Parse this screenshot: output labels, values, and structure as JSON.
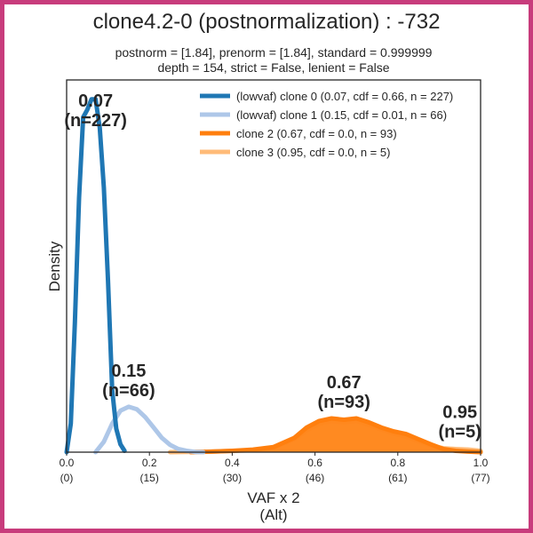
{
  "chart_data": {
    "type": "area",
    "title": "clone4.2-0 (postnormalization) : -732",
    "subtitle_lines": [
      "postnorm = [1.84], prenorm = [1.84], standard = 0.999999",
      "depth = 154, strict = False, lenient = False"
    ],
    "xlabel_lines": [
      "VAF x 2",
      "(Alt)"
    ],
    "ylabel": "Density",
    "xlim": [
      0.0,
      1.0
    ],
    "ylim": [
      0,
      14
    ],
    "x_ticks": [
      {
        "value": 0.0,
        "label": "0.0",
        "sublabel": "(0)"
      },
      {
        "value": 0.2,
        "label": "0.2",
        "sublabel": "(15)"
      },
      {
        "value": 0.4,
        "label": "0.4",
        "sublabel": "(30)"
      },
      {
        "value": 0.6,
        "label": "0.6",
        "sublabel": "(46)"
      },
      {
        "value": 0.8,
        "label": "0.8",
        "sublabel": "(61)"
      },
      {
        "value": 1.0,
        "label": "1.0",
        "sublabel": "(77)"
      }
    ],
    "grid": false,
    "legend_position": "top-right",
    "series": [
      {
        "name": "(lowvaf) clone 0 (0.07, cdf = 0.66, n = 227)",
        "color": "#1f77b4",
        "filled": false,
        "peak_label": [
          "0.07",
          "(n=227)"
        ],
        "peak_x": 0.07,
        "x": [
          0.0,
          0.01,
          0.02,
          0.03,
          0.04,
          0.05,
          0.06,
          0.07,
          0.08,
          0.09,
          0.1,
          0.11,
          0.12,
          0.13,
          0.14
        ],
        "y": [
          0.0,
          1.1,
          5.0,
          9.8,
          12.9,
          13.2,
          13.6,
          13.6,
          12.5,
          10.2,
          6.6,
          2.4,
          0.9,
          0.3,
          0.05
        ]
      },
      {
        "name": "(lowvaf) clone 1 (0.15, cdf = 0.01, n = 66)",
        "color": "#aec7e8",
        "filled": false,
        "peak_label": [
          "0.15",
          "(n=66)"
        ],
        "peak_x": 0.15,
        "x": [
          0.07,
          0.09,
          0.11,
          0.13,
          0.15,
          0.17,
          0.19,
          0.21,
          0.23,
          0.25,
          0.27,
          0.29,
          0.31,
          0.33
        ],
        "y": [
          0.0,
          0.4,
          1.1,
          1.6,
          1.75,
          1.65,
          1.35,
          0.95,
          0.55,
          0.28,
          0.12,
          0.05,
          0.01,
          0.0
        ]
      },
      {
        "name": "clone 2 (0.67, cdf = 0.0, n = 93)",
        "color": "#ff7f0e",
        "filled": true,
        "peak_label": [
          "0.67",
          "(n=93)"
        ],
        "peak_x": 0.67,
        "x": [
          0.3,
          0.35,
          0.4,
          0.45,
          0.5,
          0.55,
          0.58,
          0.61,
          0.64,
          0.67,
          0.7,
          0.73,
          0.76,
          0.79,
          0.82,
          0.85,
          0.88,
          0.91,
          0.94,
          0.97,
          1.0
        ],
        "y": [
          0.0,
          0.02,
          0.05,
          0.1,
          0.2,
          0.55,
          0.95,
          1.2,
          1.3,
          1.25,
          1.3,
          1.15,
          0.95,
          0.8,
          0.7,
          0.5,
          0.3,
          0.12,
          0.05,
          0.02,
          0.0
        ]
      },
      {
        "name": "clone 3 (0.95, cdf = 0.0, n = 5)",
        "color": "#ffbb78",
        "filled": true,
        "peak_label": [
          "0.95",
          "(n=5)"
        ],
        "peak_x": 0.95,
        "x": [
          0.25,
          0.35,
          0.45,
          0.5,
          0.55,
          0.58,
          0.61,
          0.64,
          0.67,
          0.7,
          0.73,
          0.76,
          0.79,
          0.82,
          0.85,
          0.88,
          0.91,
          0.94,
          0.97,
          1.0
        ],
        "y": [
          0.0,
          0.02,
          0.08,
          0.18,
          0.5,
          0.85,
          1.1,
          1.2,
          1.15,
          1.2,
          1.05,
          0.88,
          0.72,
          0.6,
          0.42,
          0.25,
          0.15,
          0.12,
          0.1,
          0.05
        ]
      }
    ]
  }
}
